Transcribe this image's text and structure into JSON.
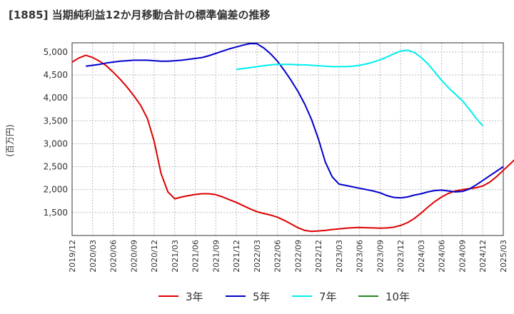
{
  "chart_data": {
    "type": "line",
    "title": "[1885]  当期純利益12か月移動合計の標準偏差の推移",
    "ylabel": "(百万円)",
    "xlabel": "",
    "ylim": [
      1000,
      5200
    ],
    "yticks": [
      1500,
      2000,
      2500,
      3000,
      3500,
      4000,
      4500,
      5000
    ],
    "ytick_labels": [
      "1,500",
      "2,000",
      "2,500",
      "3,000",
      "3,500",
      "4,000",
      "4,500",
      "5,000"
    ],
    "x_categories": [
      "2019/12",
      "2020/03",
      "2020/06",
      "2020/09",
      "2020/12",
      "2021/03",
      "2021/06",
      "2021/09",
      "2021/12",
      "2022/03",
      "2022/06",
      "2022/09",
      "2022/12",
      "2023/03",
      "2023/06",
      "2023/09",
      "2023/12",
      "2024/03",
      "2024/06",
      "2024/09",
      "2024/12",
      "2025/03"
    ],
    "x_start": "2019/12",
    "legend_position": "bottom",
    "series": [
      {
        "name": "3年",
        "color": "#dd0000",
        "start": "2019/12",
        "values": [
          4780,
          4870,
          4930,
          4880,
          4800,
          4700,
          4560,
          4410,
          4240,
          4050,
          3840,
          3550,
          3050,
          2350,
          1950,
          1800,
          1840,
          1870,
          1895,
          1910,
          1910,
          1890,
          1840,
          1780,
          1720,
          1650,
          1580,
          1520,
          1480,
          1445,
          1400,
          1330,
          1250,
          1170,
          1110,
          1090,
          1100,
          1110,
          1130,
          1145,
          1160,
          1170,
          1175,
          1170,
          1165,
          1160,
          1165,
          1180,
          1220,
          1280,
          1370,
          1490,
          1620,
          1740,
          1840,
          1920,
          1970,
          2000,
          2020,
          2040,
          2080,
          2160,
          2280,
          2420,
          2560,
          2700,
          2840
        ]
      },
      {
        "name": "5年",
        "color": "#0000cc",
        "start": "2020/02",
        "values": [
          4690,
          4710,
          4730,
          4760,
          4780,
          4800,
          4810,
          4820,
          4820,
          4820,
          4810,
          4800,
          4800,
          4810,
          4820,
          4840,
          4860,
          4880,
          4920,
          4970,
          5020,
          5070,
          5110,
          5150,
          5185,
          5180,
          5090,
          4960,
          4800,
          4600,
          4380,
          4140,
          3860,
          3520,
          3100,
          2600,
          2280,
          2120,
          2090,
          2060,
          2030,
          2000,
          1970,
          1930,
          1870,
          1830,
          1820,
          1840,
          1880,
          1910,
          1950,
          1980,
          1990,
          1970,
          1950,
          1960,
          2010,
          2100,
          2200,
          2300,
          2400,
          2500
        ]
      },
      {
        "name": "7年",
        "color": "#00eeee",
        "start": "2021/12",
        "values": [
          4620,
          4640,
          4660,
          4680,
          4700,
          4720,
          4730,
          4730,
          4730,
          4720,
          4720,
          4710,
          4700,
          4690,
          4680,
          4680,
          4680,
          4690,
          4710,
          4740,
          4780,
          4830,
          4890,
          4960,
          5020,
          5040,
          4990,
          4880,
          4740,
          4560,
          4380,
          4220,
          4080,
          3940,
          3760,
          3560,
          3390
        ]
      },
      {
        "name": "10年",
        "color": "#228822",
        "start": "",
        "values": []
      }
    ]
  }
}
